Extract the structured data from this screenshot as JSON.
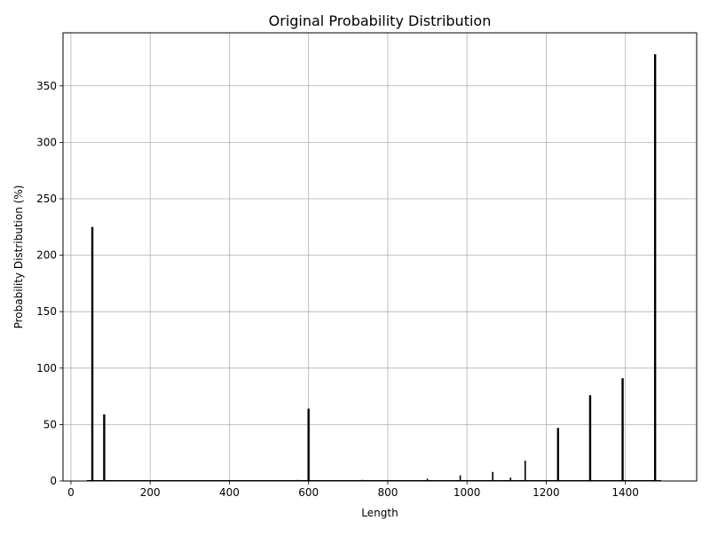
{
  "chart_data": {
    "type": "bar",
    "title": "Original Probability Distribution",
    "xlabel": "Length",
    "ylabel": "Probability Distribution (%)",
    "xlim": [
      -20,
      1580
    ],
    "ylim": [
      0,
      397
    ],
    "xticks": [
      0,
      200,
      400,
      600,
      800,
      1000,
      1200,
      1400
    ],
    "yticks": [
      0,
      50,
      100,
      150,
      200,
      250,
      300,
      350
    ],
    "grid": true,
    "bar_color": "#000000",
    "grid_color": "#b0b0b0",
    "points": [
      {
        "x": 54,
        "y": 225
      },
      {
        "x": 84,
        "y": 59
      },
      {
        "x": 236,
        "y": 0.4
      },
      {
        "x": 490,
        "y": 0.4
      },
      {
        "x": 573,
        "y": 1
      },
      {
        "x": 600,
        "y": 64
      },
      {
        "x": 736,
        "y": 1
      },
      {
        "x": 820,
        "y": 0.8
      },
      {
        "x": 900,
        "y": 2
      },
      {
        "x": 983,
        "y": 5
      },
      {
        "x": 1065,
        "y": 8
      },
      {
        "x": 1110,
        "y": 3
      },
      {
        "x": 1147,
        "y": 18
      },
      {
        "x": 1230,
        "y": 47
      },
      {
        "x": 1311,
        "y": 76
      },
      {
        "x": 1393,
        "y": 91
      },
      {
        "x": 1475,
        "y": 378
      }
    ]
  }
}
